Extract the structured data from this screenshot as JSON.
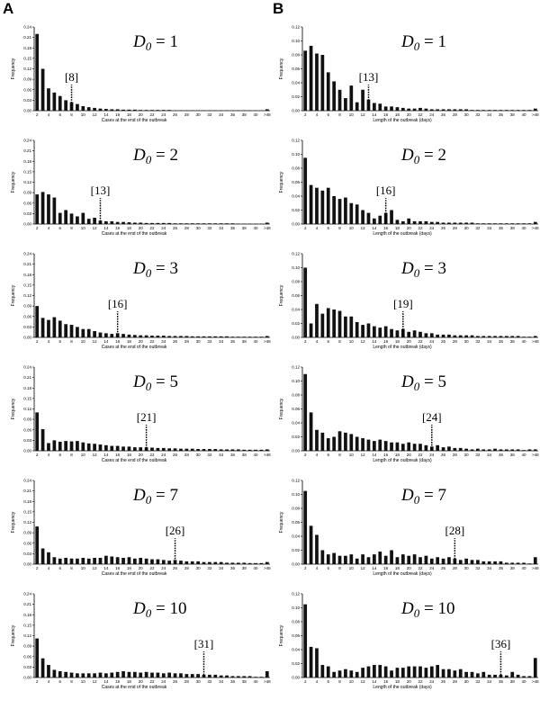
{
  "panel_labels": [
    "A",
    "B"
  ],
  "chart_data": [
    {
      "type": "bar",
      "panel": "A",
      "d0_symbol": "D",
      "d0_subscript": "0",
      "d0_value": "1",
      "ylabel": "Frequency",
      "xlabel": "Cases at the end of the outbreak",
      "yticks": [
        "0.00",
        "0.03",
        "0.06",
        "0.09",
        "0.12",
        "0.15",
        "0.18",
        "0.21",
        "0.24"
      ],
      "ylim": [
        0,
        0.24
      ],
      "xticks": [
        "2",
        "4",
        "6",
        "8",
        "10",
        "12",
        "14",
        "16",
        "18",
        "20",
        "22",
        "24",
        "26",
        "28",
        "30",
        "32",
        "34",
        "36",
        "38",
        "40",
        ">48"
      ],
      "marker_x": 8,
      "marker_label": "[8]",
      "values": [
        0.22,
        0.12,
        0.064,
        0.052,
        0.042,
        0.03,
        0.024,
        0.019,
        0.013,
        0.01,
        0.008,
        0.006,
        0.005,
        0.004,
        0.004,
        0.003,
        0.003,
        0.003,
        0.002,
        0.002,
        0.002,
        0.002,
        0.002,
        0.002,
        0.001,
        0.001,
        0.001,
        0.001,
        0.001,
        0.001,
        0.001,
        0.001,
        0.001,
        0.001,
        0.001,
        0.001,
        0.001,
        0.001,
        0.001,
        0.001,
        0.004
      ]
    },
    {
      "type": "bar",
      "panel": "B",
      "d0_symbol": "D",
      "d0_subscript": "0",
      "d0_value": "1",
      "ylabel": "Frequency",
      "xlabel": "Length of the outbreak (days)",
      "yticks": [
        "0.00",
        "0.02",
        "0.04",
        "0.06",
        "0.08",
        "0.10",
        "0.12"
      ],
      "ylim": [
        0,
        0.12
      ],
      "xticks": [
        "2",
        "4",
        "6",
        "8",
        "10",
        "12",
        "14",
        "16",
        "18",
        "20",
        "22",
        "24",
        "26",
        "28",
        "30",
        "32",
        "34",
        "36",
        "38",
        "40",
        ">48"
      ],
      "marker_x": 13,
      "marker_label": "[13]",
      "values": [
        0.086,
        0.093,
        0.082,
        0.08,
        0.055,
        0.042,
        0.03,
        0.018,
        0.036,
        0.012,
        0.03,
        0.016,
        0.011,
        0.01,
        0.006,
        0.006,
        0.005,
        0.004,
        0.003,
        0.003,
        0.004,
        0.003,
        0.002,
        0.002,
        0.002,
        0.002,
        0.002,
        0.002,
        0.002,
        0.001,
        0.001,
        0.001,
        0.001,
        0.001,
        0.001,
        0.001,
        0.001,
        0.001,
        0.001,
        0.001,
        0.003
      ]
    },
    {
      "type": "bar",
      "panel": "A",
      "d0_symbol": "D",
      "d0_subscript": "0",
      "d0_value": "2",
      "ylabel": "Frequency",
      "xlabel": "Cases at the end of the outbreak",
      "yticks": [
        "0.00",
        "0.03",
        "0.06",
        "0.09",
        "0.12",
        "0.15",
        "0.18",
        "0.21",
        "0.24"
      ],
      "ylim": [
        0,
        0.24
      ],
      "xticks": [
        "2",
        "4",
        "6",
        "8",
        "10",
        "12",
        "14",
        "16",
        "18",
        "20",
        "22",
        "24",
        "26",
        "28",
        "30",
        "32",
        "34",
        "36",
        "38",
        "40",
        ">48"
      ],
      "marker_x": 13,
      "marker_label": "[13]",
      "values": [
        0.085,
        0.092,
        0.085,
        0.076,
        0.032,
        0.04,
        0.03,
        0.022,
        0.032,
        0.015,
        0.018,
        0.01,
        0.008,
        0.008,
        0.006,
        0.006,
        0.005,
        0.004,
        0.004,
        0.003,
        0.003,
        0.003,
        0.003,
        0.003,
        0.002,
        0.002,
        0.002,
        0.002,
        0.002,
        0.002,
        0.002,
        0.002,
        0.002,
        0.002,
        0.002,
        0.001,
        0.001,
        0.001,
        0.001,
        0.001,
        0.004
      ]
    },
    {
      "type": "bar",
      "panel": "B",
      "d0_symbol": "D",
      "d0_subscript": "0",
      "d0_value": "2",
      "ylabel": "Frequency",
      "xlabel": "Length of the outbreak (days)",
      "yticks": [
        "0.00",
        "0.02",
        "0.04",
        "0.06",
        "0.08",
        "0.10",
        "0.12"
      ],
      "ylim": [
        0,
        0.12
      ],
      "xticks": [
        "2",
        "4",
        "6",
        "8",
        "10",
        "12",
        "14",
        "16",
        "18",
        "20",
        "22",
        "24",
        "26",
        "28",
        "30",
        "32",
        "34",
        "36",
        "38",
        "40",
        ">48"
      ],
      "marker_x": 16,
      "marker_label": "[16]",
      "values": [
        0.095,
        0.056,
        0.052,
        0.048,
        0.052,
        0.04,
        0.036,
        0.038,
        0.03,
        0.028,
        0.02,
        0.016,
        0.008,
        0.012,
        0.016,
        0.02,
        0.006,
        0.004,
        0.008,
        0.004,
        0.004,
        0.004,
        0.003,
        0.003,
        0.002,
        0.002,
        0.002,
        0.002,
        0.002,
        0.002,
        0.001,
        0.001,
        0.001,
        0.001,
        0.001,
        0.001,
        0.001,
        0.001,
        0.001,
        0.001,
        0.003
      ]
    },
    {
      "type": "bar",
      "panel": "A",
      "d0_symbol": "D",
      "d0_subscript": "0",
      "d0_value": "3",
      "ylabel": "Frequency",
      "xlabel": "Cases at the end of the outbreak",
      "yticks": [
        "0.00",
        "0.03",
        "0.06",
        "0.09",
        "0.12",
        "0.15",
        "0.18",
        "0.21",
        "0.24"
      ],
      "ylim": [
        0,
        0.24
      ],
      "xticks": [
        "2",
        "4",
        "6",
        "8",
        "10",
        "12",
        "14",
        "16",
        "18",
        "20",
        "22",
        "24",
        "26",
        "28",
        "30",
        "32",
        "34",
        "36",
        "38",
        "40",
        ">48"
      ],
      "marker_x": 16,
      "marker_label": "[16]",
      "values": [
        0.09,
        0.056,
        0.05,
        0.058,
        0.048,
        0.038,
        0.036,
        0.03,
        0.024,
        0.024,
        0.018,
        0.014,
        0.012,
        0.01,
        0.012,
        0.01,
        0.008,
        0.007,
        0.006,
        0.006,
        0.005,
        0.005,
        0.005,
        0.004,
        0.004,
        0.004,
        0.004,
        0.003,
        0.003,
        0.003,
        0.003,
        0.003,
        0.003,
        0.003,
        0.002,
        0.002,
        0.002,
        0.002,
        0.002,
        0.002,
        0.004
      ]
    },
    {
      "type": "bar",
      "panel": "B",
      "d0_symbol": "D",
      "d0_subscript": "0",
      "d0_value": "3",
      "ylabel": "Frequency",
      "xlabel": "Length of the outbreak (days)",
      "yticks": [
        "0.00",
        "0.02",
        "0.04",
        "0.06",
        "0.08",
        "0.10",
        "0.12"
      ],
      "ylim": [
        0,
        0.12
      ],
      "xticks": [
        "2",
        "4",
        "6",
        "8",
        "10",
        "12",
        "14",
        "16",
        "18",
        "20",
        "22",
        "24",
        "26",
        "28",
        "30",
        "32",
        "34",
        "36",
        "38",
        "40",
        ">48"
      ],
      "marker_x": 19,
      "marker_label": "[19]",
      "values": [
        0.1,
        0.02,
        0.048,
        0.034,
        0.042,
        0.04,
        0.038,
        0.03,
        0.03,
        0.022,
        0.018,
        0.02,
        0.016,
        0.014,
        0.016,
        0.012,
        0.01,
        0.012,
        0.008,
        0.01,
        0.008,
        0.006,
        0.006,
        0.004,
        0.004,
        0.004,
        0.003,
        0.003,
        0.003,
        0.003,
        0.002,
        0.002,
        0.002,
        0.002,
        0.002,
        0.002,
        0.002,
        0.002,
        0.001,
        0.001,
        0.002
      ]
    },
    {
      "type": "bar",
      "panel": "A",
      "d0_symbol": "D",
      "d0_subscript": "0",
      "d0_value": "5",
      "ylabel": "Frequency",
      "xlabel": "Cases at the end of the outbreak",
      "yticks": [
        "0.00",
        "0.03",
        "0.06",
        "0.09",
        "0.12",
        "0.15",
        "0.18",
        "0.21",
        "0.24"
      ],
      "ylim": [
        0,
        0.24
      ],
      "xticks": [
        "2",
        "4",
        "6",
        "8",
        "10",
        "12",
        "14",
        "16",
        "18",
        "20",
        "22",
        "24",
        "26",
        "28",
        "30",
        "32",
        "34",
        "36",
        "38",
        "40",
        ">48"
      ],
      "marker_x": 21,
      "marker_label": "[21]",
      "values": [
        0.11,
        0.062,
        0.022,
        0.03,
        0.026,
        0.028,
        0.027,
        0.028,
        0.024,
        0.021,
        0.02,
        0.018,
        0.016,
        0.014,
        0.014,
        0.012,
        0.012,
        0.01,
        0.01,
        0.01,
        0.009,
        0.008,
        0.008,
        0.007,
        0.007,
        0.006,
        0.006,
        0.006,
        0.005,
        0.005,
        0.005,
        0.005,
        0.004,
        0.004,
        0.004,
        0.004,
        0.003,
        0.003,
        0.003,
        0.003,
        0.004
      ]
    },
    {
      "type": "bar",
      "panel": "B",
      "d0_symbol": "D",
      "d0_subscript": "0",
      "d0_value": "5",
      "ylabel": "Frequency",
      "xlabel": "Length of the outbreak (days)",
      "yticks": [
        "0.00",
        "0.02",
        "0.04",
        "0.06",
        "0.08",
        "0.10",
        "0.12"
      ],
      "ylim": [
        0,
        0.12
      ],
      "xticks": [
        "2",
        "4",
        "6",
        "8",
        "10",
        "12",
        "14",
        "16",
        "18",
        "20",
        "22",
        "24",
        "26",
        "28",
        "30",
        "32",
        "34",
        "36",
        "38",
        "40",
        ">48"
      ],
      "marker_x": 24,
      "marker_label": "[24]",
      "values": [
        0.11,
        0.055,
        0.03,
        0.026,
        0.018,
        0.02,
        0.028,
        0.026,
        0.024,
        0.02,
        0.018,
        0.016,
        0.014,
        0.016,
        0.014,
        0.012,
        0.012,
        0.01,
        0.012,
        0.01,
        0.01,
        0.008,
        0.006,
        0.008,
        0.005,
        0.006,
        0.004,
        0.004,
        0.003,
        0.002,
        0.003,
        0.002,
        0.002,
        0.003,
        0.002,
        0.002,
        0.002,
        0.002,
        0.001,
        0.002,
        0.002
      ]
    },
    {
      "type": "bar",
      "panel": "A",
      "d0_symbol": "D",
      "d0_subscript": "0",
      "d0_value": "7",
      "ylabel": "Frequency",
      "xlabel": "Cases at the end of the outbreak",
      "yticks": [
        "0.00",
        "0.03",
        "0.06",
        "0.09",
        "0.12",
        "0.15",
        "0.18",
        "0.21",
        "0.24"
      ],
      "ylim": [
        0,
        0.24
      ],
      "xticks": [
        "2",
        "4",
        "6",
        "8",
        "10",
        "12",
        "14",
        "16",
        "18",
        "20",
        "22",
        "24",
        "26",
        "28",
        "30",
        "32",
        "34",
        "36",
        "38",
        "40",
        ">48"
      ],
      "marker_x": 26,
      "marker_label": "[26]",
      "values": [
        0.108,
        0.045,
        0.034,
        0.02,
        0.016,
        0.018,
        0.016,
        0.016,
        0.018,
        0.016,
        0.018,
        0.018,
        0.024,
        0.022,
        0.02,
        0.018,
        0.02,
        0.016,
        0.018,
        0.016,
        0.014,
        0.014,
        0.012,
        0.01,
        0.012,
        0.01,
        0.008,
        0.008,
        0.008,
        0.006,
        0.006,
        0.006,
        0.006,
        0.004,
        0.004,
        0.004,
        0.004,
        0.003,
        0.003,
        0.003,
        0.006
      ]
    },
    {
      "type": "bar",
      "panel": "B",
      "d0_symbol": "D",
      "d0_subscript": "0",
      "d0_value": "7",
      "ylabel": "Frequency",
      "xlabel": "Length of the outbreak (days)",
      "yticks": [
        "0.00",
        "0.02",
        "0.04",
        "0.06",
        "0.08",
        "0.10",
        "0.12"
      ],
      "ylim": [
        0,
        0.12
      ],
      "xticks": [
        "2",
        "4",
        "6",
        "8",
        "10",
        "12",
        "14",
        "16",
        "18",
        "20",
        "22",
        "24",
        "26",
        "28",
        "30",
        "32",
        "34",
        "36",
        "38",
        "40",
        ">48"
      ],
      "marker_x": 28,
      "marker_label": "[28]",
      "values": [
        0.105,
        0.055,
        0.042,
        0.02,
        0.014,
        0.016,
        0.012,
        0.012,
        0.014,
        0.008,
        0.014,
        0.01,
        0.014,
        0.018,
        0.012,
        0.02,
        0.01,
        0.014,
        0.012,
        0.014,
        0.01,
        0.012,
        0.008,
        0.01,
        0.008,
        0.01,
        0.008,
        0.006,
        0.008,
        0.006,
        0.006,
        0.004,
        0.004,
        0.004,
        0.004,
        0.002,
        0.002,
        0.002,
        0.002,
        0.001,
        0.01
      ]
    },
    {
      "type": "bar",
      "panel": "A",
      "d0_symbol": "D",
      "d0_subscript": "0",
      "d0_value": "10",
      "ylabel": "Frequency",
      "xlabel": "Cases at the end of the outbreak",
      "yticks": [
        "0.00",
        "0.03",
        "0.06",
        "0.09",
        "0.12",
        "0.15",
        "0.18",
        "0.21",
        "0.24"
      ],
      "ylim": [
        0,
        0.24
      ],
      "xticks": [
        "2",
        "4",
        "6",
        "8",
        "10",
        "12",
        "14",
        "16",
        "18",
        "20",
        "22",
        "24",
        "26",
        "28",
        "30",
        "32",
        "34",
        "36",
        "38",
        "40",
        ">48"
      ],
      "marker_x": 31,
      "marker_label": "[31]",
      "values": [
        0.112,
        0.055,
        0.036,
        0.022,
        0.018,
        0.016,
        0.014,
        0.012,
        0.012,
        0.012,
        0.012,
        0.014,
        0.012,
        0.014,
        0.016,
        0.018,
        0.016,
        0.016,
        0.014,
        0.016,
        0.014,
        0.014,
        0.012,
        0.014,
        0.012,
        0.012,
        0.01,
        0.01,
        0.01,
        0.008,
        0.008,
        0.008,
        0.006,
        0.006,
        0.004,
        0.004,
        0.004,
        0.004,
        0.002,
        0.002,
        0.018
      ]
    },
    {
      "type": "bar",
      "panel": "B",
      "d0_symbol": "D",
      "d0_subscript": "0",
      "d0_value": "10",
      "ylabel": "Frequency",
      "xlabel": "Length of the outbreak (days)",
      "yticks": [
        "0.00",
        "0.02",
        "0.04",
        "0.06",
        "0.08",
        "0.10",
        "0.12"
      ],
      "ylim": [
        0,
        0.12
      ],
      "xticks": [
        "2",
        "4",
        "6",
        "8",
        "10",
        "12",
        "14",
        "16",
        "18",
        "20",
        "22",
        "24",
        "26",
        "28",
        "30",
        "32",
        "34",
        "36",
        "38",
        "40",
        ">48"
      ],
      "marker_x": 36,
      "marker_label": "[36]",
      "values": [
        0.105,
        0.044,
        0.042,
        0.018,
        0.016,
        0.008,
        0.01,
        0.012,
        0.01,
        0.008,
        0.014,
        0.016,
        0.018,
        0.018,
        0.016,
        0.01,
        0.014,
        0.014,
        0.016,
        0.016,
        0.016,
        0.014,
        0.016,
        0.018,
        0.012,
        0.012,
        0.01,
        0.012,
        0.008,
        0.008,
        0.006,
        0.008,
        0.004,
        0.004,
        0.004,
        0.003,
        0.008,
        0.004,
        0.002,
        0.002,
        0.028
      ]
    }
  ]
}
